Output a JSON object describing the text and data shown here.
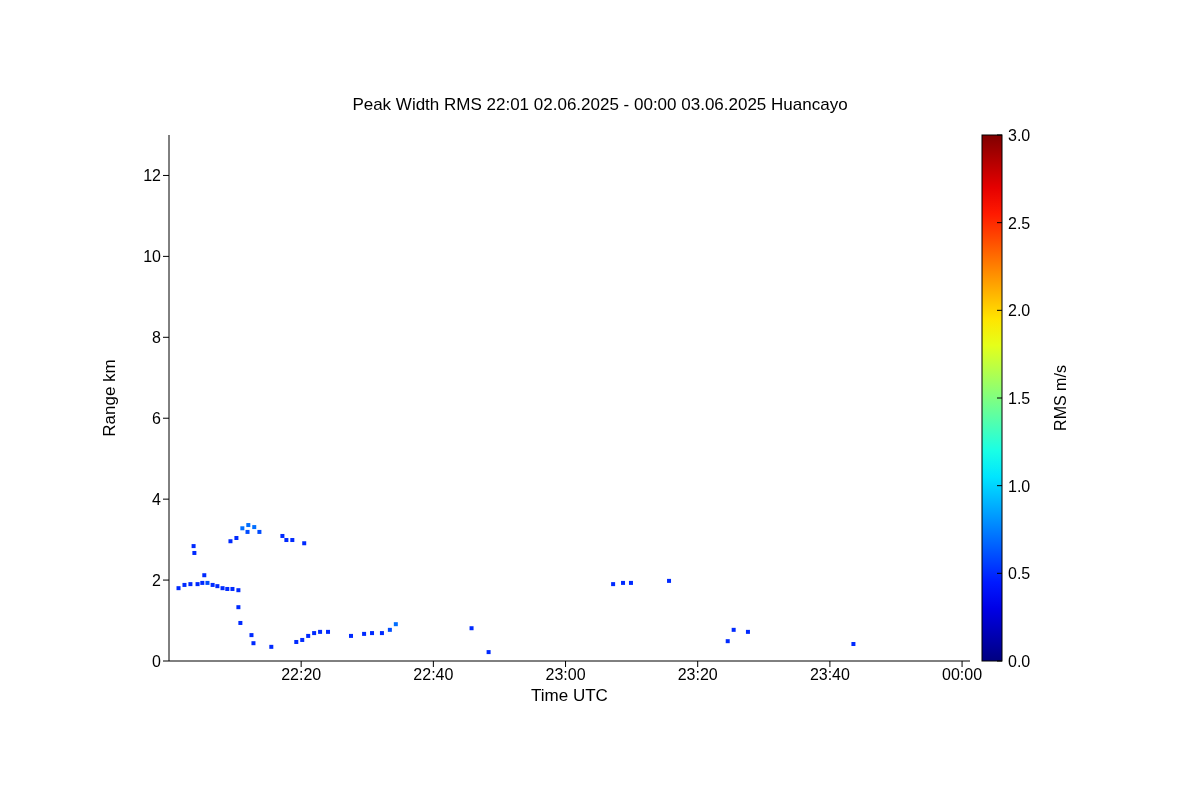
{
  "chart_data": {
    "type": "scatter",
    "title": "Peak Width RMS   22:01 02.06.2025 - 00:00 03.06.2025 Huancayo",
    "xlabel": "Time UTC",
    "ylabel": "Range km",
    "clabel": "RMS m/s",
    "marker": "square",
    "x": [
      22.024,
      22.039,
      22.054,
      22.072,
      22.084,
      22.097,
      22.11,
      22.122,
      22.135,
      22.147,
      22.16,
      22.175,
      22.089,
      22.062,
      22.064,
      22.155,
      22.17,
      22.185,
      22.2,
      22.215,
      22.228,
      22.198,
      22.286,
      22.296,
      22.311,
      22.341,
      22.175,
      22.18,
      22.208,
      22.213,
      22.258,
      22.321,
      22.336,
      22.351,
      22.366,
      22.381,
      22.401,
      22.459,
      22.492,
      22.512,
      22.537,
      22.557,
      22.572,
      22.763,
      22.806,
      23.12,
      23.145,
      23.165,
      23.261,
      23.409,
      23.424,
      23.46,
      23.726
    ],
    "values": [
      1.8,
      1.88,
      1.9,
      1.9,
      1.93,
      1.93,
      1.88,
      1.85,
      1.8,
      1.78,
      1.78,
      1.75,
      2.12,
      2.84,
      2.67,
      2.96,
      3.04,
      3.28,
      3.36,
      3.31,
      3.19,
      3.19,
      3.09,
      2.99,
      2.99,
      2.91,
      1.33,
      0.94,
      0.64,
      0.44,
      0.35,
      0.47,
      0.52,
      0.62,
      0.69,
      0.72,
      0.72,
      0.62,
      0.67,
      0.69,
      0.69,
      0.77,
      0.91,
      0.81,
      0.22,
      1.9,
      1.93,
      1.93,
      1.98,
      0.49,
      0.77,
      0.72,
      0.42
    ],
    "cvalues": [
      0.5,
      0.5,
      0.5,
      0.5,
      0.5,
      0.6,
      0.5,
      0.5,
      0.5,
      0.5,
      0.5,
      0.5,
      0.5,
      0.5,
      0.5,
      0.5,
      0.5,
      0.7,
      0.7,
      0.7,
      0.6,
      0.6,
      0.5,
      0.5,
      0.5,
      0.5,
      0.5,
      0.5,
      0.5,
      0.5,
      0.5,
      0.5,
      0.5,
      0.5,
      0.5,
      0.5,
      0.5,
      0.5,
      0.5,
      0.5,
      0.5,
      0.6,
      0.7,
      0.5,
      0.5,
      0.5,
      0.5,
      0.5,
      0.5,
      0.5,
      0.5,
      0.5,
      0.5
    ],
    "xlim": [
      22.0,
      24.02
    ],
    "ylim": [
      0,
      13
    ],
    "xticks": [
      {
        "value": 22.3333,
        "label": "22:20"
      },
      {
        "value": 22.6667,
        "label": "22:40"
      },
      {
        "value": 23.0,
        "label": "23:00"
      },
      {
        "value": 23.3333,
        "label": "23:20"
      },
      {
        "value": 23.6667,
        "label": "23:40"
      },
      {
        "value": 24.0,
        "label": "00:00"
      }
    ],
    "yticks": [
      0,
      2,
      4,
      6,
      8,
      10,
      12
    ],
    "clim": [
      0,
      3
    ],
    "cticks": [
      {
        "value": 0,
        "label": "0.0"
      },
      {
        "value": 0.5,
        "label": "0.5"
      },
      {
        "value": 1,
        "label": "1.0"
      },
      {
        "value": 1.5,
        "label": "1.5"
      },
      {
        "value": 2,
        "label": "2.0"
      },
      {
        "value": 2.5,
        "label": "2.5"
      },
      {
        "value": 3,
        "label": "3.0"
      }
    ]
  }
}
